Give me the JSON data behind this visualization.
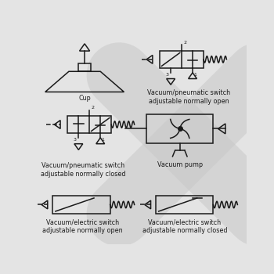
{
  "bg_color": "#e4e4e4",
  "line_color": "#1a1a1a",
  "text_color": "#1a1a1a",
  "labels": {
    "cup": "Cup",
    "vp_nc": "Vacuum/pneumatic switch\nadjustable normally closed",
    "vp_no": "Vacuum/pneumatic switch\nadjustable normally open",
    "pump": "Vacuum pump",
    "ve_no": "Vacuum/electric switch\nadjustable normally open",
    "ve_nc": "Vacuum/electric switch\nadjustable normally closed"
  },
  "label_fontsize": 5.8,
  "symbol_lw": 1.1,
  "x_bg_color": "#d0d0d0"
}
